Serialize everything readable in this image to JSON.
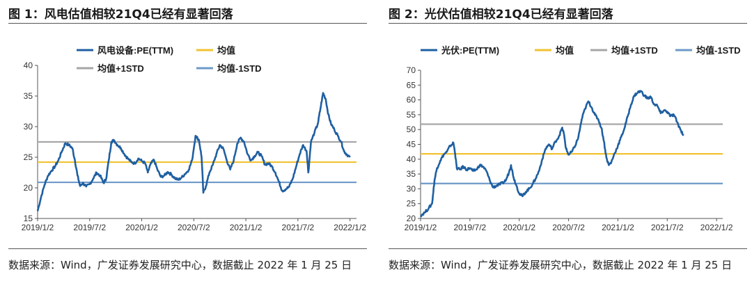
{
  "figures": [
    {
      "title": "图 1：风电估值相较21Q4已经有显著回落",
      "source": "数据来源：Wind，广发证券发展研究中心，数据截止 2022 年 1 月 25 日"
    },
    {
      "title": "图 2：光伏估值相较21Q4已经有显著回落",
      "source": "数据来源：Wind，广发证券发展研究中心，数据截止 2022 年 1 月 25 日"
    }
  ],
  "colors": {
    "series": "#1f5fa1",
    "mean": "#f1c232",
    "plus1": "#a6a6a6",
    "minus1": "#6d9ac8"
  },
  "chart_data": [
    {
      "type": "line",
      "title": "风电估值相较21Q4已经有显著回落",
      "xlabel": "",
      "ylabel": "",
      "ylim": [
        15,
        40
      ],
      "yticks": [
        15,
        20,
        25,
        30,
        35,
        40
      ],
      "xrange": [
        0,
        36.75
      ],
      "xticks": [
        {
          "x": 0,
          "label": "2019/1/2"
        },
        {
          "x": 6,
          "label": "2019/7/2"
        },
        {
          "x": 12,
          "label": "2020/1/2"
        },
        {
          "x": 18,
          "label": "2020/7/2"
        },
        {
          "x": 24,
          "label": "2021/1/2"
        },
        {
          "x": 30,
          "label": "2021/7/2"
        },
        {
          "x": 36,
          "label": "2022/1/2"
        }
      ],
      "legend": [
        "风电设备:PE(TTM)",
        "均值",
        "均值+1STD",
        "均值-1STD"
      ],
      "mean": 24.2,
      "plus1std": 27.5,
      "minus1std": 20.9,
      "series": [
        {
          "name": "风电设备:PE(TTM)",
          "points": [
            [
              0,
              16.2
            ],
            [
              0.4,
              18.5
            ],
            [
              0.8,
              20.5
            ],
            [
              1.2,
              22.0
            ],
            [
              1.6,
              22.8
            ],
            [
              2.0,
              23.5
            ],
            [
              2.4,
              24.5
            ],
            [
              2.8,
              26.0
            ],
            [
              3.2,
              27.3
            ],
            [
              3.6,
              27.0
            ],
            [
              4.0,
              26.5
            ],
            [
              4.3,
              24.5
            ],
            [
              4.6,
              22.0
            ],
            [
              4.9,
              20.3
            ],
            [
              5.2,
              20.8
            ],
            [
              5.6,
              20.2
            ],
            [
              6.0,
              20.6
            ],
            [
              6.4,
              21.5
            ],
            [
              6.8,
              22.5
            ],
            [
              7.2,
              22.0
            ],
            [
              7.6,
              20.8
            ],
            [
              7.9,
              21.5
            ],
            [
              8.2,
              24.5
            ],
            [
              8.5,
              27.5
            ],
            [
              8.8,
              27.8
            ],
            [
              9.2,
              27.0
            ],
            [
              9.6,
              26.5
            ],
            [
              10.0,
              25.5
            ],
            [
              10.4,
              24.8
            ],
            [
              10.8,
              24.2
            ],
            [
              11.2,
              24.0
            ],
            [
              11.6,
              24.8
            ],
            [
              12.0,
              24.4
            ],
            [
              12.4,
              24.0
            ],
            [
              12.7,
              22.5
            ],
            [
              13.0,
              23.8
            ],
            [
              13.4,
              24.6
            ],
            [
              13.8,
              23.0
            ],
            [
              14.2,
              21.8
            ],
            [
              14.6,
              22.0
            ],
            [
              15.0,
              22.6
            ],
            [
              15.4,
              22.2
            ],
            [
              15.8,
              21.6
            ],
            [
              16.2,
              21.3
            ],
            [
              16.6,
              21.7
            ],
            [
              17.0,
              22.3
            ],
            [
              17.4,
              22.9
            ],
            [
              17.8,
              24.5
            ],
            [
              18.2,
              28.5
            ],
            [
              18.6,
              27.8
            ],
            [
              18.9,
              25.0
            ],
            [
              19.1,
              19.2
            ],
            [
              19.4,
              20.3
            ],
            [
              19.8,
              22.5
            ],
            [
              20.2,
              23.8
            ],
            [
              20.6,
              25.5
            ],
            [
              21.0,
              27.0
            ],
            [
              21.4,
              26.4
            ],
            [
              21.8,
              24.5
            ],
            [
              22.2,
              23.0
            ],
            [
              22.6,
              24.5
            ],
            [
              23.0,
              27.2
            ],
            [
              23.4,
              28.2
            ],
            [
              23.8,
              27.5
            ],
            [
              24.2,
              25.5
            ],
            [
              24.6,
              24.5
            ],
            [
              25.0,
              25.2
            ],
            [
              25.4,
              25.8
            ],
            [
              25.8,
              25.2
            ],
            [
              26.2,
              23.8
            ],
            [
              26.6,
              24.0
            ],
            [
              27.0,
              23.5
            ],
            [
              27.4,
              22.5
            ],
            [
              27.8,
              21.0
            ],
            [
              28.2,
              19.5
            ],
            [
              28.6,
              19.8
            ],
            [
              29.0,
              20.2
            ],
            [
              29.4,
              21.5
            ],
            [
              29.8,
              23.5
            ],
            [
              30.2,
              25.5
            ],
            [
              30.6,
              27.0
            ],
            [
              31.0,
              26.0
            ],
            [
              31.2,
              22.5
            ],
            [
              31.5,
              27.5
            ],
            [
              31.9,
              29.0
            ],
            [
              32.3,
              30.5
            ],
            [
              32.6,
              33.0
            ],
            [
              32.9,
              35.5
            ],
            [
              33.2,
              34.5
            ],
            [
              33.5,
              32.0
            ],
            [
              33.8,
              30.5
            ],
            [
              34.2,
              29.5
            ],
            [
              34.6,
              28.5
            ],
            [
              35.0,
              27.5
            ],
            [
              35.3,
              26.0
            ],
            [
              35.6,
              25.5
            ],
            [
              36.0,
              25.0
            ]
          ]
        }
      ]
    },
    {
      "type": "line",
      "title": "光伏估值相较21Q4已经有显著回落",
      "xlabel": "",
      "ylabel": "",
      "ylim": [
        20,
        70
      ],
      "yticks": [
        20,
        25,
        30,
        35,
        40,
        45,
        50,
        55,
        60,
        65,
        70
      ],
      "xrange": [
        0,
        36.75
      ],
      "xticks": [
        {
          "x": 0,
          "label": "2019/1/2"
        },
        {
          "x": 6,
          "label": "2019/7/2"
        },
        {
          "x": 12,
          "label": "2020/1/2"
        },
        {
          "x": 18,
          "label": "2020/7/2"
        },
        {
          "x": 24,
          "label": "2021/1/2"
        },
        {
          "x": 30,
          "label": "2021/7/2"
        },
        {
          "x": 36,
          "label": "2022/1/2"
        }
      ],
      "legend": [
        "光伏:PE(TTM)",
        "均值",
        "均值+1STD",
        "均值-1STD"
      ],
      "mean": 41.8,
      "plus1std": 51.8,
      "minus1std": 31.8,
      "series": [
        {
          "name": "光伏:PE(TTM)",
          "points": [
            [
              0,
              21.0
            ],
            [
              0.5,
              22.0
            ],
            [
              1.0,
              23.5
            ],
            [
              1.4,
              25.0
            ],
            [
              1.7,
              33.0
            ],
            [
              2.0,
              37.0
            ],
            [
              2.4,
              39.5
            ],
            [
              2.8,
              41.5
            ],
            [
              3.2,
              42.5
            ],
            [
              3.6,
              44.5
            ],
            [
              4.0,
              45.5
            ],
            [
              4.2,
              42.0
            ],
            [
              4.4,
              37.0
            ],
            [
              4.8,
              36.5
            ],
            [
              5.2,
              37.5
            ],
            [
              5.6,
              36.5
            ],
            [
              6.0,
              37.0
            ],
            [
              6.4,
              36.0
            ],
            [
              6.8,
              36.5
            ],
            [
              7.2,
              38.0
            ],
            [
              7.6,
              37.5
            ],
            [
              8.0,
              36.0
            ],
            [
              8.4,
              33.0
            ],
            [
              8.8,
              30.5
            ],
            [
              9.2,
              31.0
            ],
            [
              9.6,
              31.5
            ],
            [
              10.0,
              32.0
            ],
            [
              10.4,
              33.0
            ],
            [
              10.8,
              36.0
            ],
            [
              11.0,
              38.0
            ],
            [
              11.3,
              34.0
            ],
            [
              11.6,
              31.5
            ],
            [
              12.0,
              28.5
            ],
            [
              12.4,
              27.5
            ],
            [
              12.8,
              29.0
            ],
            [
              13.2,
              30.0
            ],
            [
              13.6,
              31.5
            ],
            [
              14.0,
              33.5
            ],
            [
              14.4,
              36.0
            ],
            [
              14.8,
              40.0
            ],
            [
              15.2,
              43.5
            ],
            [
              15.6,
              45.0
            ],
            [
              16.0,
              43.5
            ],
            [
              16.4,
              46.0
            ],
            [
              16.8,
              47.5
            ],
            [
              17.2,
              50.5
            ],
            [
              17.4,
              49.0
            ],
            [
              17.7,
              43.5
            ],
            [
              18.0,
              41.5
            ],
            [
              18.4,
              42.5
            ],
            [
              18.8,
              44.5
            ],
            [
              19.2,
              47.5
            ],
            [
              19.6,
              53.5
            ],
            [
              20.0,
              57.0
            ],
            [
              20.4,
              59.5
            ],
            [
              20.8,
              57.5
            ],
            [
              21.2,
              55.0
            ],
            [
              21.6,
              53.5
            ],
            [
              22.0,
              50.5
            ],
            [
              22.3,
              46.0
            ],
            [
              22.6,
              40.5
            ],
            [
              22.9,
              38.0
            ],
            [
              23.2,
              39.0
            ],
            [
              23.6,
              42.0
            ],
            [
              24.0,
              44.5
            ],
            [
              24.4,
              47.5
            ],
            [
              24.8,
              50.5
            ],
            [
              25.2,
              54.5
            ],
            [
              25.6,
              58.5
            ],
            [
              26.0,
              61.5
            ],
            [
              26.4,
              62.5
            ],
            [
              26.8,
              63.0
            ],
            [
              27.2,
              61.5
            ],
            [
              27.6,
              60.5
            ],
            [
              28.0,
              61.0
            ],
            [
              28.4,
              58.5
            ],
            [
              28.8,
              58.0
            ],
            [
              29.2,
              55.5
            ],
            [
              29.6,
              56.5
            ],
            [
              30.0,
              56.0
            ],
            [
              30.4,
              54.5
            ],
            [
              30.8,
              55.0
            ],
            [
              31.2,
              52.5
            ],
            [
              31.6,
              50.0
            ],
            [
              32.0,
              48.0
            ]
          ]
        }
      ]
    }
  ]
}
